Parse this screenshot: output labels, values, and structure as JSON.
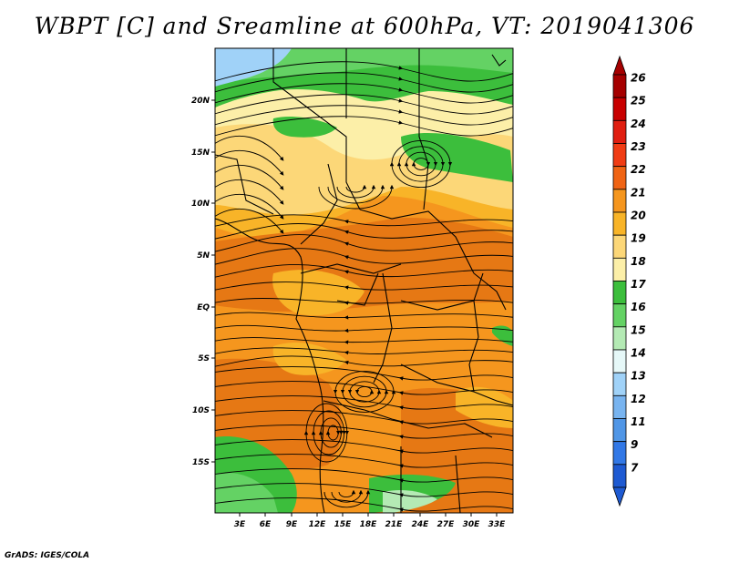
{
  "title": "WBPT [C] and Sreamline at 600hPa, VT: 2019041306",
  "credit": "GrADS: IGES/COLA",
  "map": {
    "lat_ticks": [
      "20N",
      "15N",
      "10N",
      "5N",
      "EQ",
      "5S",
      "10S",
      "15S"
    ],
    "lon_ticks": [
      "3E",
      "6E",
      "9E",
      "12E",
      "15E",
      "18E",
      "21E",
      "24E",
      "27E",
      "30E",
      "33E"
    ]
  },
  "colorbar": {
    "labels": [
      "26",
      "25",
      "24",
      "23",
      "22",
      "21",
      "20",
      "19",
      "18",
      "17",
      "16",
      "15",
      "14",
      "13",
      "12",
      "11",
      "9",
      "7"
    ],
    "colors": [
      "#a50000",
      "#c80000",
      "#e01e10",
      "#f03c14",
      "#f06414",
      "#f5961e",
      "#f8b428",
      "#fcd778",
      "#fcefa8",
      "#3cbe3c",
      "#64d264",
      "#b4eab4",
      "#e6f8f8",
      "#a0d2f8",
      "#78b4f0",
      "#5096e6",
      "#3278e6",
      "#1e5ad2"
    ]
  },
  "fields": {
    "bg_orange": "#f5961e",
    "dark_orange": "#e67814",
    "light_orange": "#f8b428",
    "yellow": "#fcd778",
    "pale_yellow": "#fcefa8",
    "green": "#3cbe3c",
    "light_green": "#64d264",
    "pale_green": "#b4eab4",
    "blue": "#a0d2f8"
  }
}
